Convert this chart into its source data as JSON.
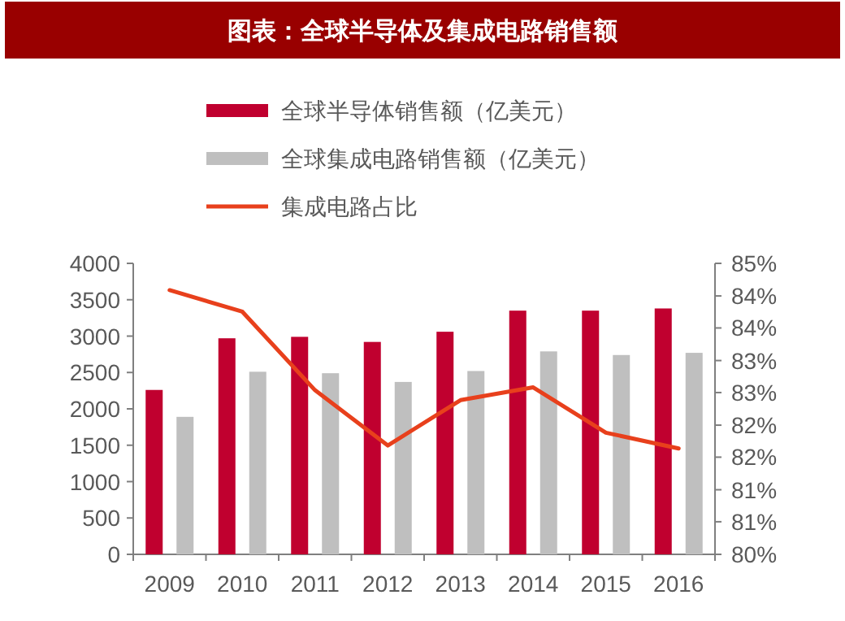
{
  "chart_data": {
    "type": "bar",
    "title": "图表：全球半导体及集成电路销售额",
    "categories": [
      "2009",
      "2010",
      "2011",
      "2012",
      "2013",
      "2014",
      "2015",
      "2016"
    ],
    "series": [
      {
        "name": "全球半导体销售额（亿美元）",
        "color": "#c0002f",
        "values": [
          2260,
          2970,
          2990,
          2920,
          3060,
          3350,
          3350,
          3380
        ]
      },
      {
        "name": "全球集成电路销售额（亿美元）",
        "color": "#bfbfbf",
        "values": [
          1890,
          2510,
          2490,
          2370,
          2520,
          2790,
          2740,
          2770
        ]
      },
      {
        "name": "集成电路占比",
        "type": "line",
        "axis": "y2",
        "color": "#e8401c",
        "values": [
          84.54,
          84.17,
          82.82,
          81.87,
          82.65,
          82.87,
          82.09,
          81.82
        ]
      }
    ],
    "ylim": [
      0,
      4000
    ],
    "yticks": [
      0,
      500,
      1000,
      1500,
      2000,
      2500,
      3000,
      3500,
      4000
    ],
    "y2lim": [
      80,
      85
    ],
    "y2ticks": [
      {
        "value": 80,
        "label": "80%"
      },
      {
        "value": 80.56,
        "label": "81%"
      },
      {
        "value": 81.11,
        "label": "81%"
      },
      {
        "value": 81.67,
        "label": "82%"
      },
      {
        "value": 82.22,
        "label": "82%"
      },
      {
        "value": 82.78,
        "label": "83%"
      },
      {
        "value": 83.33,
        "label": "83%"
      },
      {
        "value": 83.89,
        "label": "84%"
      },
      {
        "value": 84.44,
        "label": "84%"
      },
      {
        "value": 85,
        "label": "85%"
      }
    ],
    "legend": "top",
    "grid": false
  }
}
